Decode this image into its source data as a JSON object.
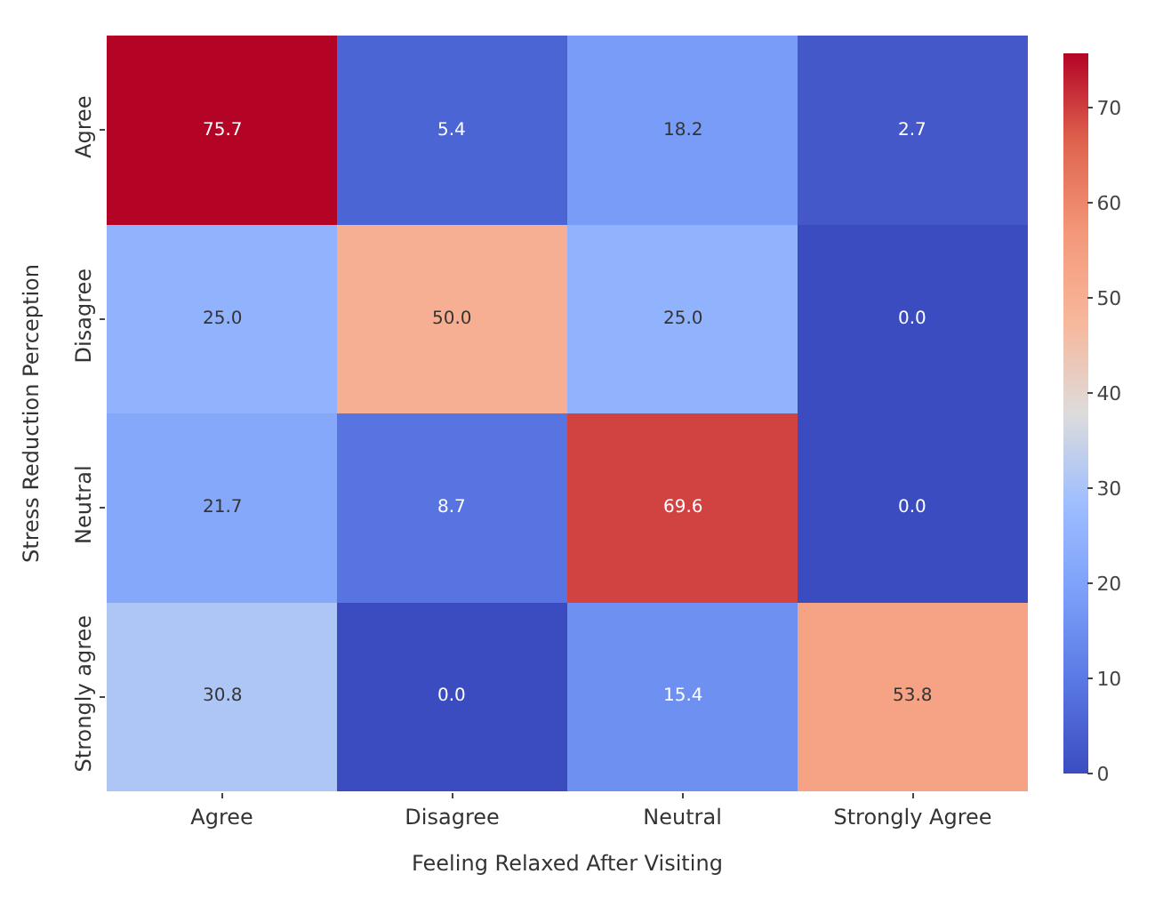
{
  "chart_data": {
    "type": "heatmap",
    "xlabel": "Feeling Relaxed After Visiting",
    "ylabel": "Stress Reduction Perception",
    "categories": [
      "Agree",
      "Disagree",
      "Neutral",
      "Strongly Agree"
    ],
    "y_categories": [
      "Agree",
      "Disagree",
      "Neutral",
      "Strongly agree"
    ],
    "cells": [
      [
        75.7,
        5.4,
        18.2,
        2.7
      ],
      [
        25.0,
        50.0,
        25.0,
        0.0
      ],
      [
        21.7,
        8.7,
        69.6,
        0.0
      ],
      [
        30.8,
        0.0,
        15.4,
        53.8
      ]
    ],
    "cell_labels": [
      [
        "75.7",
        "5.4",
        "18.2",
        "2.7"
      ],
      [
        "25.0",
        "50.0",
        "25.0",
        "0.0"
      ],
      [
        "21.7",
        "8.7",
        "69.6",
        "0.0"
      ],
      [
        "30.8",
        "0.0",
        "15.4",
        "53.8"
      ]
    ],
    "clim": [
      0,
      75.7
    ],
    "cticks": [
      0,
      10,
      20,
      30,
      40,
      50,
      60,
      70
    ]
  }
}
